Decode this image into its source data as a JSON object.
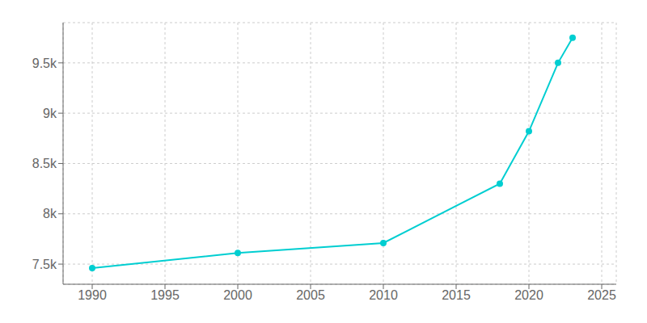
{
  "chart_data": {
    "type": "line",
    "x": [
      1990,
      2000,
      2010,
      2018,
      2020,
      2022,
      2023
    ],
    "values": [
      7460,
      7610,
      7710,
      8300,
      8820,
      9500,
      9750
    ],
    "color": "#00CED1",
    "marker": "circle",
    "xlim": [
      1988,
      2026
    ],
    "ylim": [
      7300,
      9900
    ],
    "xticks": [
      1990,
      1995,
      2000,
      2005,
      2010,
      2015,
      2020,
      2025
    ],
    "yticks": [
      {
        "value": 7500,
        "label": "7.5k"
      },
      {
        "value": 8000,
        "label": "8k"
      },
      {
        "value": 8500,
        "label": "8.5k"
      },
      {
        "value": 9000,
        "label": "9k"
      },
      {
        "value": 9500,
        "label": "9.5k"
      }
    ],
    "grid": true
  }
}
